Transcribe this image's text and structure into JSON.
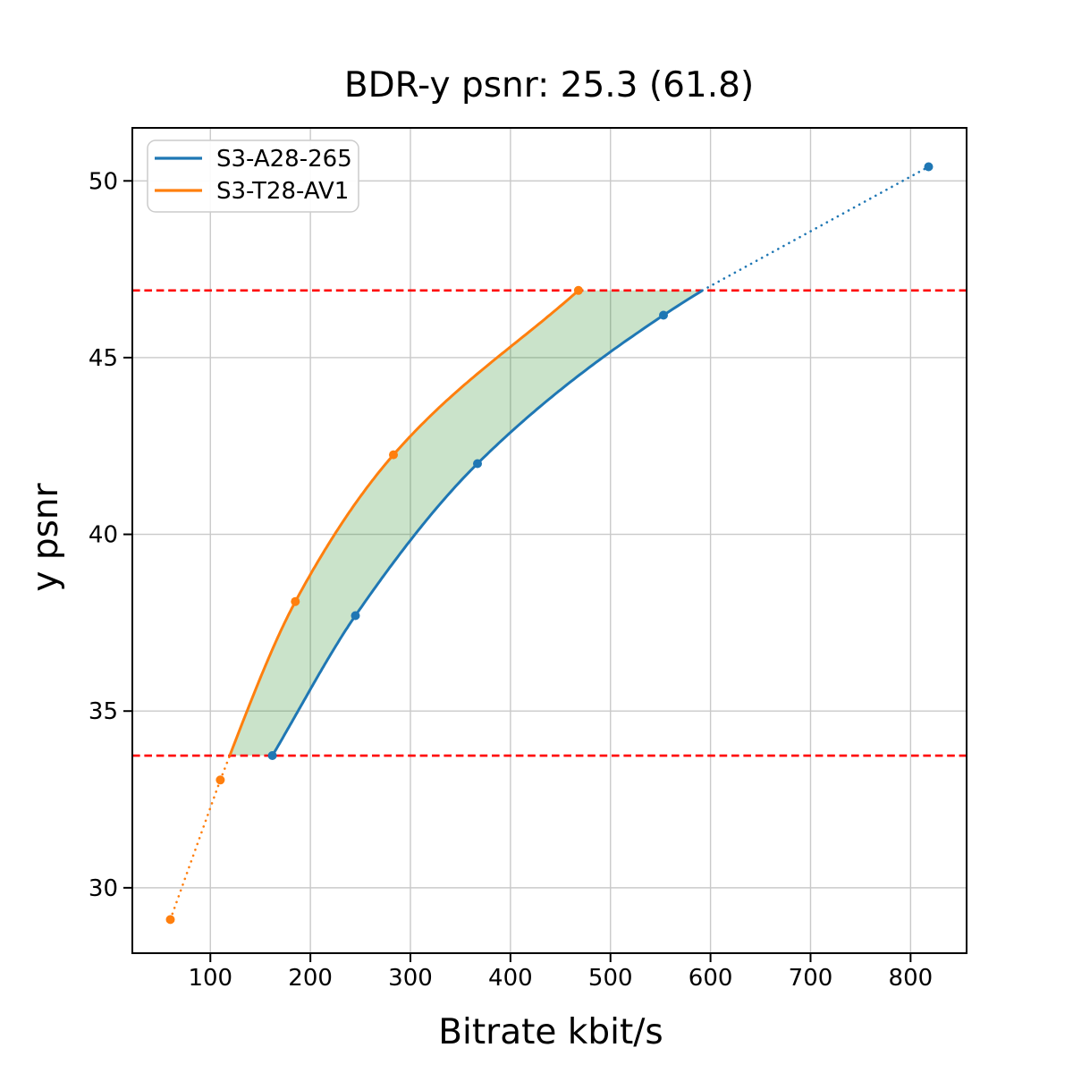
{
  "chart_data": {
    "type": "line",
    "title": "BDR-y psnr: 25.3 (61.8)",
    "xlabel": "Bitrate kbit/s",
    "ylabel": "y psnr",
    "xlim": [
      22,
      856
    ],
    "ylim": [
      28.15,
      51.5
    ],
    "xticks": [
      100,
      200,
      300,
      400,
      500,
      600,
      700,
      800
    ],
    "yticks": [
      30,
      35,
      40,
      45,
      50
    ],
    "grid": true,
    "series": [
      {
        "name": "S3-A28-265",
        "color": "#1f77b4",
        "marker": "circle",
        "points": [
          [
            162,
            33.74
          ],
          [
            245,
            37.7
          ],
          [
            367,
            42.0
          ],
          [
            553,
            46.2
          ],
          [
            818,
            50.4
          ]
        ]
      },
      {
        "name": "S3-T28-AV1",
        "color": "#ff7f0e",
        "marker": "circle",
        "points": [
          [
            60,
            29.1
          ],
          [
            110,
            33.05
          ],
          [
            185,
            38.1
          ],
          [
            283,
            42.25
          ],
          [
            468,
            46.9
          ]
        ]
      }
    ],
    "overlap_band": {
      "low": 33.74,
      "high": 46.9,
      "line_color": "#ff0000",
      "line_style": "dashed",
      "fill_color": "#228b22",
      "fill_opacity": 0.24,
      "description": "green area between the two RD curves clipped to the overlapping psnr range marked by the red dashed lines"
    },
    "legend": {
      "position": "upper left",
      "entries": [
        "S3-A28-265",
        "S3-T28-AV1"
      ]
    }
  }
}
